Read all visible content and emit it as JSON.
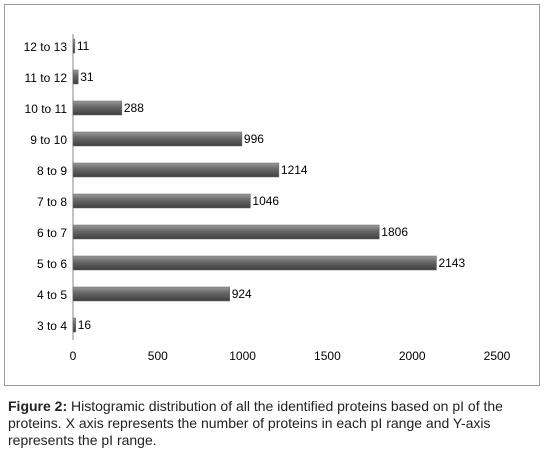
{
  "chart_data": {
    "type": "barh",
    "categories": [
      "3 to 4",
      "4 to 5",
      "5 to 6",
      "6 to 7",
      "7 to 8",
      "8 to 9",
      "9 to 10",
      "10 to 11",
      "11 to 12",
      "12 to 13"
    ],
    "values": [
      16,
      924,
      2143,
      1806,
      1046,
      1214,
      996,
      288,
      31,
      11
    ],
    "color": "#666666",
    "xlim": [
      0,
      2500
    ],
    "xticks": [
      0,
      500,
      1000,
      1500,
      2000,
      2500
    ],
    "grid": false,
    "caption_label": "Figure 2:",
    "caption": "Histogramic distribution of all the identified proteins based on pI of the proteins. X axis represents the number of proteins in each pI range and Y-axis represents the pI range."
  }
}
